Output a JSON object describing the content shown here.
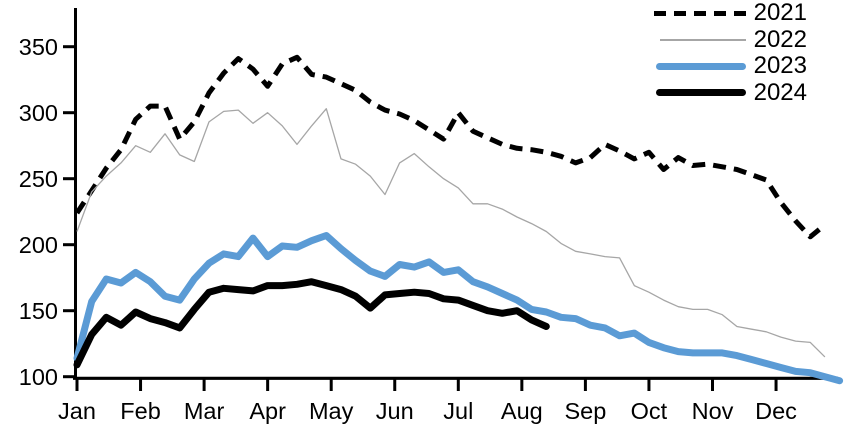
{
  "chart_data": {
    "type": "line",
    "title": "",
    "xlabel": "",
    "ylabel": "",
    "x_axis": {
      "tick_labels": [
        "Jan",
        "Feb",
        "Mar",
        "Apr",
        "May",
        "Jun",
        "Jul",
        "Aug",
        "Sep",
        "Oct",
        "Nov",
        "Dec"
      ],
      "unit": "weekly observations over one year"
    },
    "y_axis": {
      "tick_labels": [
        "100",
        "150",
        "200",
        "250",
        "300",
        "350"
      ],
      "min": 100,
      "max": 350,
      "tick_step": 50
    },
    "grid": "off",
    "legend_position": "top-right",
    "series": [
      {
        "name": "2021",
        "color": "#000000",
        "style": "dashed",
        "width": 5,
        "values": [
          224,
          241,
          258,
          272,
          295,
          305,
          305,
          280,
          293,
          315,
          330,
          341,
          333,
          320,
          337,
          342,
          329,
          327,
          322,
          317,
          308,
          302,
          299,
          294,
          287,
          280,
          300,
          286,
          281,
          276,
          273,
          272,
          270,
          267,
          262,
          266,
          276,
          271,
          265,
          270,
          257,
          266,
          260,
          261,
          259,
          257,
          253,
          249,
          232,
          218,
          206,
          215
        ]
      },
      {
        "name": "2022",
        "color": "#A6A6A6",
        "style": "solid",
        "width": 1.3,
        "values": [
          210,
          240,
          252,
          262,
          275,
          270,
          284,
          268,
          263,
          293,
          301,
          302,
          292,
          300,
          290,
          276,
          290,
          303,
          265,
          261,
          252,
          238,
          262,
          269,
          259,
          250,
          243,
          231,
          231,
          227,
          221,
          216,
          210,
          201,
          195,
          193,
          191,
          190,
          169,
          164,
          158,
          153,
          151,
          151,
          147,
          138,
          136,
          134,
          130,
          127,
          126,
          115
        ]
      },
      {
        "name": "2023",
        "color": "#5B9BD5",
        "style": "solid",
        "width": 7,
        "values": [
          114,
          157,
          174,
          171,
          179,
          172,
          161,
          158,
          174,
          186,
          193,
          191,
          205,
          191,
          199,
          198,
          203,
          207,
          197,
          188,
          180,
          176,
          185,
          183,
          187,
          179,
          181,
          172,
          168,
          163,
          158,
          151,
          149,
          145,
          144,
          139,
          137,
          131,
          133,
          126,
          122,
          119,
          118,
          118,
          118,
          116,
          113,
          110,
          107,
          104,
          103,
          100,
          97
        ]
      },
      {
        "name": "2024",
        "color": "#000000",
        "style": "solid",
        "width": 7,
        "values": [
          109,
          132,
          145,
          139,
          149,
          144,
          141,
          137,
          151,
          164,
          167,
          166,
          165,
          169,
          169,
          170,
          172,
          169,
          166,
          161,
          152,
          162,
          163,
          164,
          163,
          159,
          158,
          154,
          150,
          148,
          150,
          143,
          138
        ]
      }
    ]
  }
}
